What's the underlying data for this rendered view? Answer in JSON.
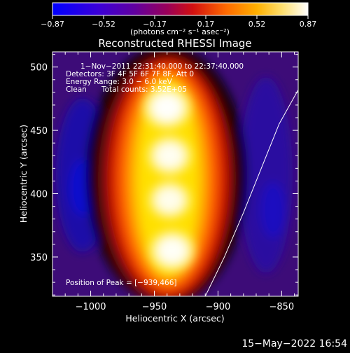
{
  "chart_data": {
    "type": "heatmap",
    "title": "Reconstructed RHESSI Image",
    "xlabel": "Heliocentric X (arcsec)",
    "ylabel": "Heliocentric Y (arcsec)",
    "xlim": [
      -1030,
      -837
    ],
    "ylim": [
      319,
      512
    ],
    "xticks": [
      -1000,
      -950,
      -900,
      -850
    ],
    "xtick_labels": [
      "−1000",
      "−950",
      "−900",
      "−850"
    ],
    "yticks": [
      350,
      400,
      450,
      500
    ],
    "ytick_labels": [
      "350",
      "400",
      "450",
      "500"
    ],
    "colorbar": {
      "label": "(photons cm⁻² s⁻¹ asec⁻²)",
      "range": [
        -0.87,
        0.87
      ],
      "tick_labels": [
        "−0.87",
        "−0.52",
        "−0.17",
        "0.17",
        "0.52",
        "0.87"
      ]
    },
    "annotations": {
      "time_range": "1−Nov−2011 22:31:40.000 to 22:37:40.000",
      "detectors": "Detectors: 3F 4F 5F 6F 7F 8F, Att 0",
      "energy_range": "Energy Range: 3.0 − 6.0 keV",
      "clean": "Clean",
      "total_counts": "Total counts: 3.52E+05",
      "peak_position": "Position of Peak = [−939,466]"
    },
    "sources": [
      {
        "x": -940,
        "y": 468,
        "peak": 0.87
      },
      {
        "x": -938,
        "y": 430,
        "peak": 0.78
      },
      {
        "x": -938,
        "y": 395,
        "peak": 0.74
      },
      {
        "x": -936,
        "y": 355,
        "peak": 0.82
      }
    ],
    "limb_curve": [
      [
        -910,
        319
      ],
      [
        -895,
        350
      ],
      [
        -880,
        385
      ],
      [
        -868,
        415
      ],
      [
        -852,
        455
      ],
      [
        -837,
        482
      ]
    ],
    "footer_date": "15−May−2022 16:54"
  },
  "colors": {
    "background": "#000000",
    "text": "#ffffff",
    "colormap": [
      "#0000ff",
      "#5a00a8",
      "#a0003a",
      "#d81800",
      "#ff7a00",
      "#ffd000",
      "#ffffb0",
      "#ffffff"
    ]
  }
}
